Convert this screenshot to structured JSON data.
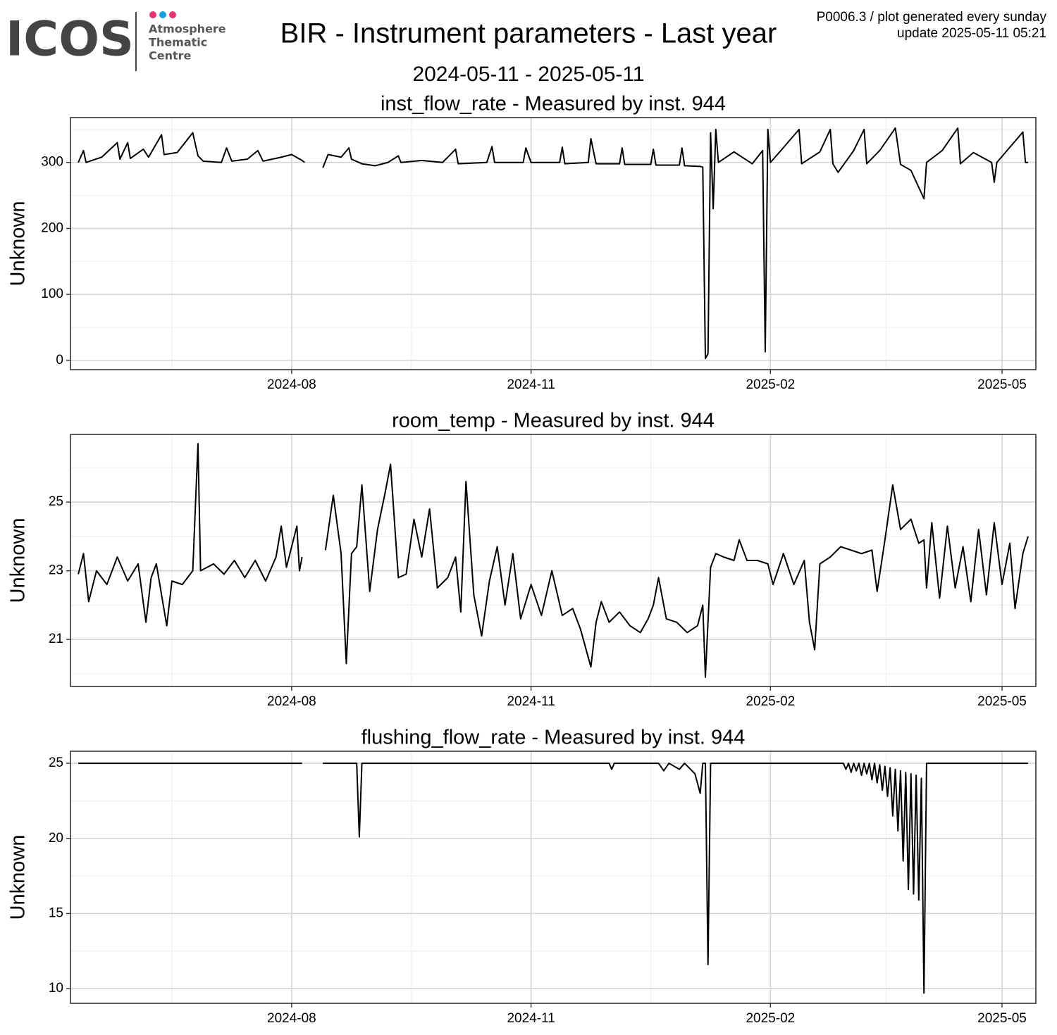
{
  "header": {
    "logo": {
      "mark": "ICOS",
      "lines": [
        "Atmosphere",
        "Thematic",
        "Centre"
      ]
    },
    "title": "BIR - Instrument parameters - Last year",
    "subtitle": "2024-05-11 - 2025-05-11",
    "notes": [
      "P0006.3 / plot generated every sunday",
      "update  2025-05-11 05:21"
    ]
  },
  "chart_data": [
    {
      "type": "line",
      "title": "inst_flow_rate - Measured by inst. 944",
      "y_label": "Unknown",
      "color": "#000000",
      "grid": true,
      "xlim": [
        "2024-05-08",
        "2025-05-14"
      ],
      "ylim": [
        -14,
        368
      ],
      "xticks": [
        {
          "value": "2024-08-01",
          "label": "2024-08"
        },
        {
          "value": "2024-11-01",
          "label": "2024-11"
        },
        {
          "value": "2025-02-01",
          "label": "2025-02"
        },
        {
          "value": "2025-05-01",
          "label": "2025-05"
        }
      ],
      "yticks": [
        0,
        100,
        200,
        300
      ],
      "x": [
        "2024-05-11",
        "2024-05-13",
        "2024-05-14",
        "2024-05-20",
        "2024-05-26",
        "2024-05-27",
        "2024-05-30",
        "2024-05-31",
        "2024-06-05",
        "2024-06-07",
        "2024-06-12",
        "2024-06-13",
        "2024-06-18",
        "2024-06-24",
        "2024-06-26",
        "2024-06-28",
        "2024-07-05",
        "2024-07-07",
        "2024-07-09",
        "2024-07-15",
        "2024-07-19",
        "2024-07-21",
        "2024-07-28",
        "2024-08-01",
        "2024-08-05",
        "2024-08-06",
        "2024-08-09",
        "2024-08-13",
        "2024-08-15",
        "2024-08-20",
        "2024-08-23",
        "2024-08-24",
        "2024-08-28",
        "2024-09-02",
        "2024-09-07",
        "2024-09-11",
        "2024-09-12",
        "2024-09-20",
        "2024-09-28",
        "2024-10-03",
        "2024-10-04",
        "2024-10-15",
        "2024-10-17",
        "2024-10-18",
        "2024-10-29",
        "2024-10-30",
        "2024-11-01",
        "2024-11-12",
        "2024-11-13",
        "2024-11-14",
        "2024-11-23",
        "2024-11-24",
        "2024-11-26",
        "2024-12-05",
        "2024-12-06",
        "2024-12-07",
        "2024-12-17",
        "2024-12-18",
        "2024-12-19",
        "2024-12-28",
        "2024-12-29",
        "2024-12-30",
        "2025-01-05",
        "2025-01-06",
        "2025-01-07",
        "2025-01-08",
        "2025-01-09",
        "2025-01-10",
        "2025-01-11",
        "2025-01-12",
        "2025-01-18",
        "2025-01-25",
        "2025-01-29",
        "2025-01-30",
        "2025-01-31",
        "2025-02-01",
        "2025-02-05",
        "2025-02-12",
        "2025-02-13",
        "2025-02-20",
        "2025-02-24",
        "2025-02-25",
        "2025-02-27",
        "2025-03-05",
        "2025-03-09",
        "2025-03-10",
        "2025-03-15",
        "2025-03-21",
        "2025-03-23",
        "2025-03-27",
        "2025-04-01",
        "2025-04-02",
        "2025-04-08",
        "2025-04-14",
        "2025-04-15",
        "2025-04-20",
        "2025-04-27",
        "2025-04-28",
        "2025-04-29",
        "2025-05-09",
        "2025-05-10",
        "2025-05-11"
      ],
      "values": [
        300,
        318,
        300,
        308,
        330,
        305,
        330,
        306,
        320,
        308,
        342,
        312,
        315,
        345,
        310,
        302,
        300,
        322,
        302,
        305,
        318,
        302,
        308,
        312,
        303,
        300,
        null,
        292,
        312,
        308,
        322,
        305,
        298,
        295,
        300,
        310,
        300,
        303,
        300,
        320,
        298,
        300,
        324,
        300,
        300,
        322,
        300,
        300,
        323,
        298,
        300,
        336,
        298,
        298,
        322,
        297,
        297,
        320,
        296,
        296,
        322,
        295,
        294,
        293,
        3,
        10,
        345,
        230,
        350,
        300,
        316,
        298,
        318,
        13,
        350,
        300,
        318,
        350,
        298,
        316,
        350,
        298,
        285,
        318,
        350,
        298,
        318,
        352,
        297,
        288,
        245,
        300,
        318,
        352,
        298,
        315,
        300,
        270,
        300,
        346,
        300,
        300
      ]
    },
    {
      "type": "line",
      "title": "room_temp - Measured by inst. 944",
      "y_label": "Unknown",
      "color": "#000000",
      "grid": true,
      "xlim": [
        "2024-05-08",
        "2025-05-14"
      ],
      "ylim": [
        19.63,
        26.97
      ],
      "xticks": [
        {
          "value": "2024-08-01",
          "label": "2024-08"
        },
        {
          "value": "2024-11-01",
          "label": "2024-11"
        },
        {
          "value": "2025-02-01",
          "label": "2025-02"
        },
        {
          "value": "2025-05-01",
          "label": "2025-05"
        }
      ],
      "yticks": [
        21,
        23,
        25
      ],
      "x": [
        "2024-05-11",
        "2024-05-13",
        "2024-05-15",
        "2024-05-18",
        "2024-05-22",
        "2024-05-26",
        "2024-05-30",
        "2024-06-03",
        "2024-06-06",
        "2024-06-08",
        "2024-06-10",
        "2024-06-14",
        "2024-06-16",
        "2024-06-20",
        "2024-06-24",
        "2024-06-26",
        "2024-06-27",
        "2024-07-02",
        "2024-07-06",
        "2024-07-10",
        "2024-07-14",
        "2024-07-18",
        "2024-07-22",
        "2024-07-26",
        "2024-07-28",
        "2024-07-30",
        "2024-08-03",
        "2024-08-04",
        "2024-08-05",
        "2024-08-08",
        "2024-08-14",
        "2024-08-17",
        "2024-08-20",
        "2024-08-22",
        "2024-08-24",
        "2024-08-26",
        "2024-08-28",
        "2024-08-31",
        "2024-09-03",
        "2024-09-06",
        "2024-09-08",
        "2024-09-11",
        "2024-09-14",
        "2024-09-17",
        "2024-09-20",
        "2024-09-23",
        "2024-09-26",
        "2024-09-30",
        "2024-10-03",
        "2024-10-05",
        "2024-10-07",
        "2024-10-10",
        "2024-10-13",
        "2024-10-16",
        "2024-10-19",
        "2024-10-22",
        "2024-10-25",
        "2024-10-28",
        "2024-11-01",
        "2024-11-05",
        "2024-11-09",
        "2024-11-13",
        "2024-11-17",
        "2024-11-20",
        "2024-11-24",
        "2024-11-26",
        "2024-11-28",
        "2024-12-01",
        "2024-12-05",
        "2024-12-09",
        "2024-12-13",
        "2024-12-16",
        "2024-12-18",
        "2024-12-20",
        "2024-12-23",
        "2024-12-27",
        "2024-12-31",
        "2025-01-04",
        "2025-01-06",
        "2025-01-07",
        "2025-01-09",
        "2025-01-11",
        "2025-01-14",
        "2025-01-18",
        "2025-01-20",
        "2025-01-23",
        "2025-01-27",
        "2025-01-31",
        "2025-02-02",
        "2025-02-06",
        "2025-02-10",
        "2025-02-14",
        "2025-02-16",
        "2025-02-18",
        "2025-02-20",
        "2025-02-24",
        "2025-02-28",
        "2025-03-04",
        "2025-03-08",
        "2025-03-12",
        "2025-03-14",
        "2025-03-17",
        "2025-03-20",
        "2025-03-23",
        "2025-03-27",
        "2025-03-30",
        "2025-04-01",
        "2025-04-02",
        "2025-04-04",
        "2025-04-07",
        "2025-04-10",
        "2025-04-13",
        "2025-04-16",
        "2025-04-19",
        "2025-04-22",
        "2025-04-25",
        "2025-04-28",
        "2025-05-01",
        "2025-05-04",
        "2025-05-06",
        "2025-05-09",
        "2025-05-11"
      ],
      "values": [
        22.9,
        23.5,
        22.1,
        23.0,
        22.6,
        23.4,
        22.7,
        23.2,
        21.5,
        22.8,
        23.2,
        21.4,
        22.7,
        22.6,
        23.0,
        26.7,
        23.0,
        23.2,
        22.9,
        23.3,
        22.8,
        23.3,
        22.7,
        23.4,
        24.3,
        23.1,
        24.3,
        23.0,
        23.4,
        null,
        23.6,
        25.2,
        23.5,
        20.3,
        23.5,
        23.7,
        25.5,
        22.4,
        24.2,
        25.3,
        26.1,
        22.8,
        22.9,
        24.5,
        23.4,
        24.8,
        22.5,
        22.8,
        23.4,
        21.8,
        25.6,
        22.3,
        21.1,
        22.7,
        23.7,
        22.0,
        23.5,
        21.6,
        22.6,
        21.7,
        23.0,
        21.7,
        21.9,
        21.3,
        20.2,
        21.5,
        22.1,
        21.5,
        21.8,
        21.4,
        21.2,
        21.6,
        22.0,
        22.8,
        21.6,
        21.5,
        21.2,
        21.4,
        22.0,
        19.9,
        23.1,
        23.5,
        23.4,
        23.3,
        23.9,
        23.3,
        23.3,
        23.2,
        22.6,
        23.5,
        22.6,
        23.3,
        21.5,
        20.7,
        23.2,
        23.4,
        23.7,
        23.6,
        23.5,
        23.6,
        22.4,
        23.9,
        25.5,
        24.2,
        24.5,
        23.8,
        23.9,
        22.5,
        24.4,
        22.2,
        24.3,
        22.5,
        23.7,
        22.1,
        24.2,
        22.3,
        24.4,
        22.6,
        23.8,
        21.9,
        23.5,
        24.0
      ]
    },
    {
      "type": "line",
      "title": "flushing_flow_rate - Measured by inst. 944",
      "y_label": "Unknown",
      "color": "#000000",
      "grid": true,
      "xlim": [
        "2024-05-08",
        "2025-05-14"
      ],
      "ylim": [
        9.02,
        25.8
      ],
      "xticks": [
        {
          "value": "2024-08-01",
          "label": "2024-08"
        },
        {
          "value": "2024-11-01",
          "label": "2024-11"
        },
        {
          "value": "2025-02-01",
          "label": "2025-02"
        },
        {
          "value": "2025-05-01",
          "label": "2025-05"
        }
      ],
      "yticks": [
        10,
        15,
        20,
        25
      ],
      "x": [
        "2024-05-11",
        "2024-08-05",
        "2024-08-06",
        "2024-08-13",
        "2024-08-26",
        "2024-08-27",
        "2024-08-28",
        "2024-12-01",
        "2024-12-02",
        "2024-12-03",
        "2024-12-20",
        "2024-12-22",
        "2024-12-24",
        "2024-12-28",
        "2024-12-30",
        "2025-01-03",
        "2025-01-05",
        "2025-01-06",
        "2025-01-07",
        "2025-01-08",
        "2025-01-09",
        "2025-03-01",
        "2025-03-02",
        "2025-03-03",
        "2025-03-04",
        "2025-03-05",
        "2025-03-06",
        "2025-03-07",
        "2025-03-08",
        "2025-03-09",
        "2025-03-10",
        "2025-03-11",
        "2025-03-12",
        "2025-03-13",
        "2025-03-14",
        "2025-03-15",
        "2025-03-16",
        "2025-03-17",
        "2025-03-18",
        "2025-03-19",
        "2025-03-20",
        "2025-03-21",
        "2025-03-22",
        "2025-03-23",
        "2025-03-24",
        "2025-03-25",
        "2025-03-26",
        "2025-03-27",
        "2025-03-28",
        "2025-03-29",
        "2025-03-30",
        "2025-03-31",
        "2025-04-01",
        "2025-04-02",
        "2025-05-11"
      ],
      "values": [
        25,
        25,
        null,
        25,
        25,
        20.1,
        25,
        25,
        24.6,
        25,
        25,
        24.5,
        25,
        24.6,
        25,
        24.3,
        23.0,
        25,
        25,
        11.6,
        25,
        25,
        24.6,
        25,
        24.4,
        25,
        24.5,
        25,
        24.2,
        25,
        24.3,
        25,
        23.9,
        25,
        23.7,
        24.9,
        23.2,
        24.8,
        22.8,
        24.7,
        21.5,
        24.6,
        20.5,
        24.5,
        18.5,
        24.4,
        16.6,
        24.3,
        16.3,
        24.2,
        15.9,
        24.0,
        9.7,
        25,
        25
      ]
    }
  ]
}
